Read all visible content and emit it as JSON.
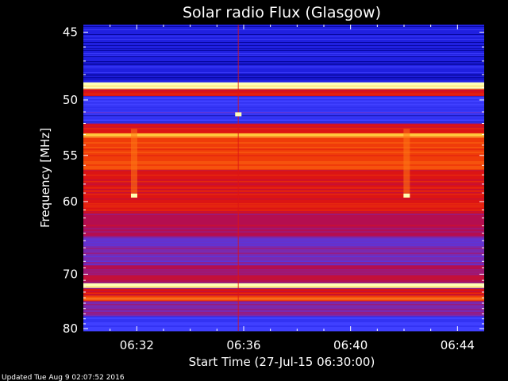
{
  "chart_data": {
    "type": "heatmap",
    "title": "Solar radio Flux (Glasgow)",
    "xlabel": "Start Time (27-Jul-15 06:30:00)",
    "ylabel": "Frequency [MHz]",
    "x_ticks": [
      "06:32",
      "06:36",
      "06:40",
      "06:44"
    ],
    "x_tick_minutes": [
      2,
      6,
      10,
      14
    ],
    "x_range_minutes": [
      0,
      15
    ],
    "y_ticks": [
      45,
      50,
      55,
      60,
      70,
      80
    ],
    "y_range": [
      44.5,
      80.5
    ],
    "y_scale": "reciprocal",
    "colormap": [
      "#00008c",
      "#2020e0",
      "#4040ff",
      "#7a2ab0",
      "#b40f50",
      "#dc1414",
      "#f03c0a",
      "#ff7814",
      "#ffc83c",
      "#ffffb4"
    ],
    "bands": [
      {
        "freq": [
          44.5,
          48.6
        ],
        "level": 0.08
      },
      {
        "freq": [
          48.6,
          49.1
        ],
        "level": 0.97
      },
      {
        "freq": [
          49.1,
          49.7
        ],
        "level": 0.55
      },
      {
        "freq": [
          49.7,
          52.0
        ],
        "level": 0.18
      },
      {
        "freq": [
          52.0,
          52.9
        ],
        "level": 0.55
      },
      {
        "freq": [
          52.9,
          53.3
        ],
        "level": 0.85
      },
      {
        "freq": [
          53.3,
          56.5
        ],
        "level": 0.68
      },
      {
        "freq": [
          56.5,
          61.5
        ],
        "level": 0.55
      },
      {
        "freq": [
          61.5,
          64.5
        ],
        "level": 0.42
      },
      {
        "freq": [
          64.5,
          68.5
        ],
        "level": 0.3
      },
      {
        "freq": [
          68.5,
          71.5
        ],
        "level": 0.45
      },
      {
        "freq": [
          71.5,
          72.3
        ],
        "level": 0.96
      },
      {
        "freq": [
          72.3,
          73.6
        ],
        "level": 0.5
      },
      {
        "freq": [
          73.6,
          74.6
        ],
        "level": 0.72
      },
      {
        "freq": [
          74.6,
          77.5
        ],
        "level": 0.38
      },
      {
        "freq": [
          77.5,
          80.5
        ],
        "level": 0.2
      }
    ],
    "features": [
      {
        "type": "column",
        "minute": 1.9,
        "freq": [
          52.5,
          59.5
        ],
        "level": 0.75
      },
      {
        "type": "column",
        "minute": 12.1,
        "freq": [
          52.5,
          59.5
        ],
        "level": 0.75
      },
      {
        "type": "column",
        "minute": 5.8,
        "freq": [
          44.5,
          80.5
        ],
        "level": 0.6
      },
      {
        "type": "spot",
        "minute": 1.9,
        "freq": 59.3,
        "level": 0.95
      },
      {
        "type": "spot",
        "minute": 12.1,
        "freq": 59.3,
        "level": 0.95
      },
      {
        "type": "spot",
        "minute": 5.8,
        "freq": 51.2,
        "level": 0.95
      }
    ]
  },
  "footer": {
    "updated": "Updated Tue Aug  9 02:07:52 2016"
  }
}
